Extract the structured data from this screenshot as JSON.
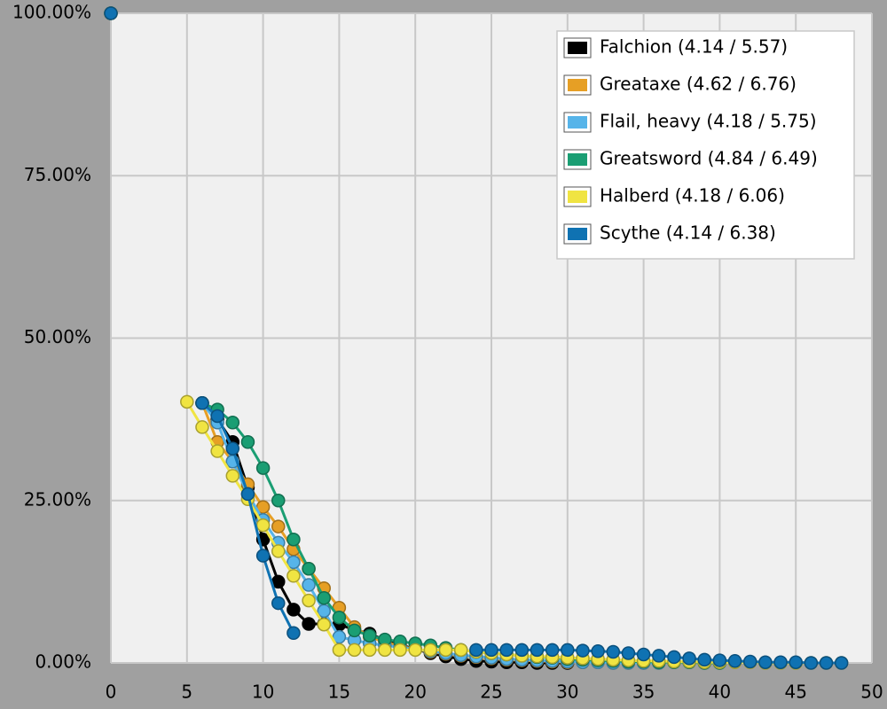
{
  "chart_data": {
    "type": "line",
    "x": [
      0,
      1,
      2,
      3,
      4,
      5,
      6,
      7,
      8,
      9,
      10,
      11,
      12,
      13,
      14,
      15,
      16,
      17,
      18,
      19,
      20,
      21,
      22,
      23,
      24,
      25,
      26,
      27,
      28,
      29,
      30,
      31,
      32,
      33,
      34,
      35,
      36,
      37,
      38,
      39,
      40,
      41,
      42,
      43,
      44,
      45,
      46,
      47,
      48
    ],
    "series": [
      {
        "name": "Falchion (4.14 / 5.57)",
        "color": "#000000",
        "values": [
          100,
          null,
          null,
          null,
          null,
          null,
          40,
          37.5,
          34,
          27,
          19,
          12.5,
          8.2,
          6,
          6,
          5.9,
          5.1,
          4.5,
          3.5,
          2.8,
          2.1,
          1.5,
          1.0,
          0.6,
          0.3,
          0.2,
          0.1,
          0.1,
          0.0,
          0.0,
          0.0,
          null,
          null,
          null,
          null,
          null,
          null,
          null,
          null,
          null,
          null,
          null,
          null,
          null,
          null,
          null,
          null,
          null,
          null
        ]
      },
      {
        "name": "Greataxe (4.62 / 6.76)",
        "color": "#e69f25",
        "values": [
          100,
          null,
          null,
          null,
          null,
          null,
          40,
          34,
          31,
          27.5,
          24,
          21,
          17.5,
          14.5,
          11.5,
          8.5,
          5.5,
          4.0,
          3.2,
          2.6,
          2.1,
          1.7,
          1.4,
          1.1,
          0.9,
          0.7,
          0.5,
          0.4,
          0.3,
          0.2,
          0.1,
          0.1,
          0.1,
          0.0,
          0.0,
          0.0,
          0.0,
          null,
          null,
          null,
          null,
          null,
          null,
          null,
          null,
          null,
          null,
          null,
          null
        ]
      },
      {
        "name": "Flail, heavy (4.18 / 5.75)",
        "color": "#56b4e9",
        "values": [
          100,
          null,
          null,
          null,
          null,
          null,
          40,
          37,
          31,
          26,
          22,
          18.5,
          15.5,
          12,
          8,
          4,
          3.5,
          3.0,
          2.7,
          2.4,
          2.1,
          1.8,
          1.5,
          1.2,
          1.0,
          0.8,
          0.6,
          0.5,
          0.4,
          0.3,
          0.2,
          0.1,
          0.1,
          0.0,
          0.0,
          0.0,
          0.0,
          null,
          null,
          null,
          null,
          null,
          null,
          null,
          null,
          null,
          null,
          null,
          null
        ]
      },
      {
        "name": "Greatsword (4.84 / 6.49)",
        "color": "#1a9e73",
        "values": [
          100,
          null,
          null,
          null,
          null,
          null,
          40,
          39,
          37,
          34,
          30,
          25,
          19,
          14.5,
          10,
          7,
          5,
          4.2,
          3.6,
          3.3,
          3.0,
          2.7,
          2.3,
          2.0,
          1.7,
          1.5,
          1.3,
          1.1,
          0.9,
          0.8,
          0.6,
          0.5,
          0.4,
          0.3,
          0.2,
          0.2,
          0.1,
          0.1,
          0.1,
          0.0,
          0.0,
          null,
          null,
          null,
          null,
          null,
          null,
          null,
          null
        ]
      },
      {
        "name": "Halberd (4.18 / 6.06)",
        "color": "#f0e442",
        "values": [
          100,
          null,
          null,
          null,
          null,
          40.2,
          36.3,
          32.6,
          28.8,
          25.2,
          21.2,
          17.2,
          13.4,
          9.6,
          5.9,
          2.0,
          2.0,
          2.0,
          2.0,
          2.0,
          2.0,
          2.0,
          2.0,
          2.0,
          1.7,
          1.5,
          1.3,
          1.1,
          1.0,
          0.9,
          0.8,
          0.7,
          0.6,
          0.5,
          0.4,
          0.3,
          0.3,
          0.2,
          0.2,
          0.1,
          0.1,
          0.1,
          0.1,
          0.0,
          0.0,
          0.0,
          0.0,
          0.0,
          0.0
        ]
      },
      {
        "name": "Scythe (4.14 / 6.38)",
        "color": "#0f72b2",
        "values": [
          100,
          null,
          null,
          null,
          null,
          null,
          40,
          38,
          33,
          26,
          16.5,
          9.2,
          4.6,
          null,
          null,
          null,
          null,
          null,
          null,
          null,
          null,
          null,
          null,
          null,
          2.0,
          2.0,
          2.0,
          2.0,
          2.0,
          2.0,
          2.0,
          1.9,
          1.8,
          1.7,
          1.5,
          1.3,
          1.1,
          0.9,
          0.7,
          0.5,
          0.4,
          0.3,
          0.2,
          0.1,
          0.1,
          0.1,
          0.0,
          0.0,
          0.0
        ]
      }
    ],
    "xlim": [
      0,
      50
    ],
    "xticks": [
      0,
      5,
      10,
      15,
      20,
      25,
      30,
      35,
      40,
      45,
      50
    ],
    "ylim": [
      0,
      100
    ],
    "yticks": [
      {
        "value": 0,
        "label": "0.00%"
      },
      {
        "value": 25,
        "label": "25.00%"
      },
      {
        "value": 50,
        "label": "50.00%"
      },
      {
        "value": 75,
        "label": "75.00%"
      },
      {
        "value": 100,
        "label": "100.00%"
      }
    ],
    "grid": true,
    "legend": "top-right"
  }
}
